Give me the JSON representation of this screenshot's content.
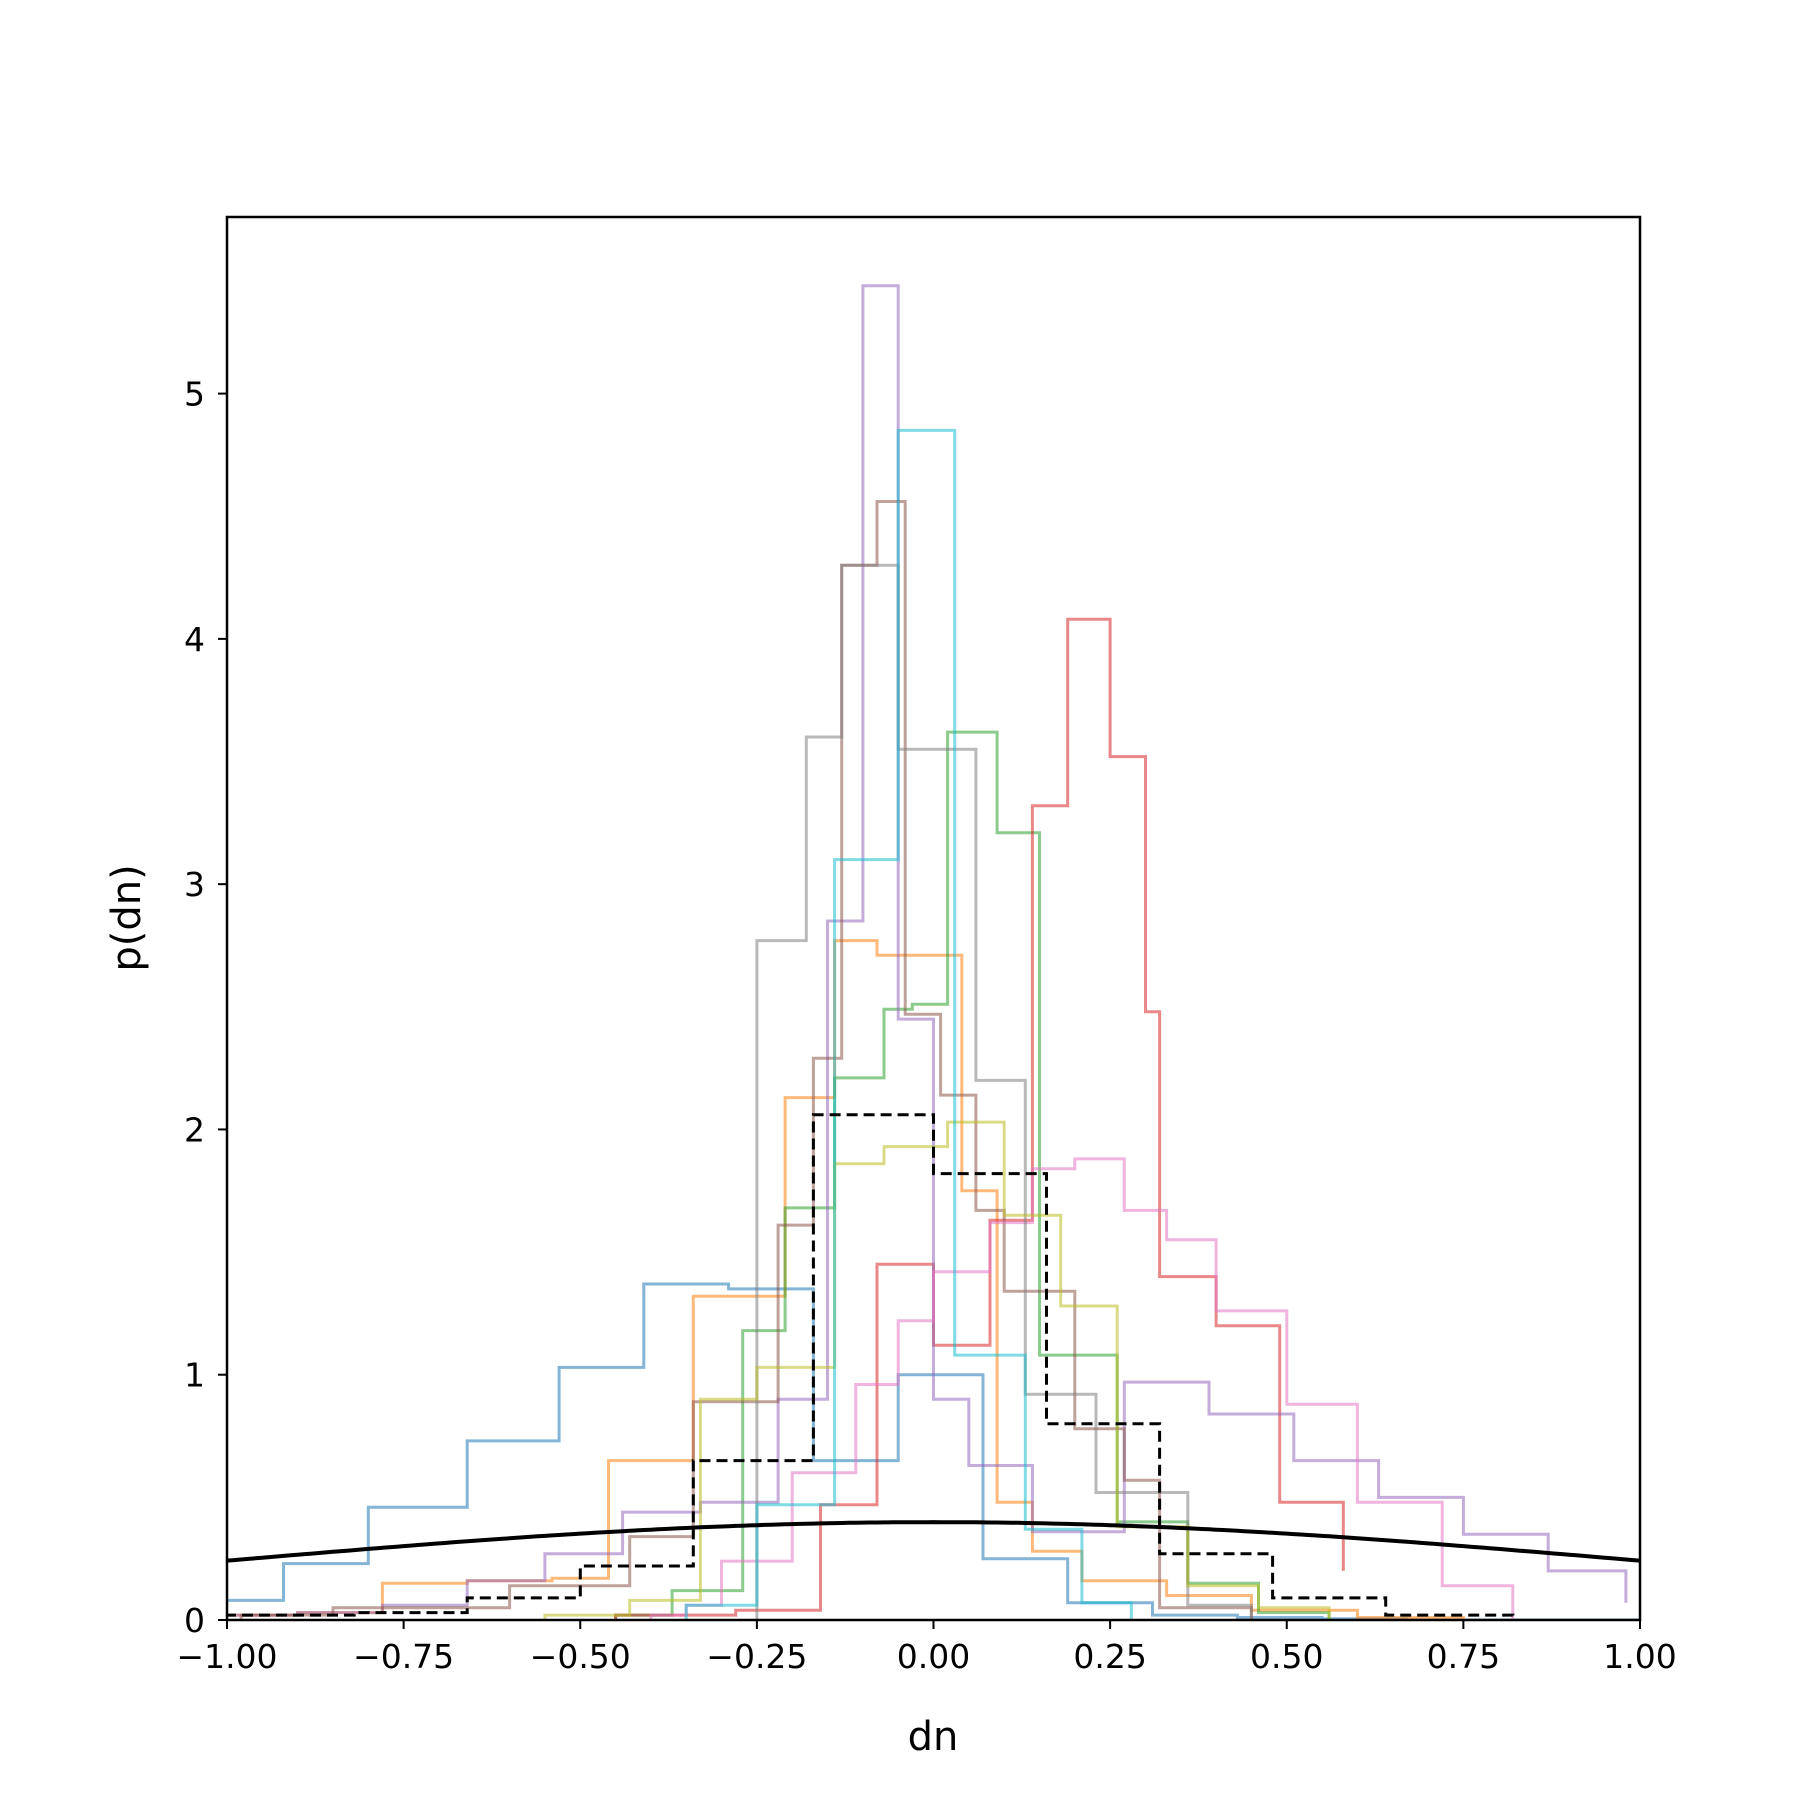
{
  "chart_data": {
    "type": "step-histogram",
    "xlabel": "dn",
    "ylabel": "p(dn)",
    "xlim": [
      -1.0,
      1.0
    ],
    "ylim": [
      0,
      5.72
    ],
    "xticks": [
      "−1.00",
      "−0.75",
      "−0.50",
      "−0.25",
      "0.00",
      "0.25",
      "0.50",
      "0.75",
      "1.00"
    ],
    "yticks": [
      "0",
      "1",
      "2",
      "3",
      "4",
      "5"
    ],
    "xtick_values": [
      -1.0,
      -0.75,
      -0.5,
      -0.25,
      0.0,
      0.25,
      0.5,
      0.75,
      1.0
    ],
    "ytick_values": [
      0,
      1,
      2,
      3,
      4,
      5
    ],
    "grid": false,
    "legend": "none",
    "series": [
      {
        "color": "#1f77b4",
        "alpha": 0.55,
        "edges": [
          -1.02,
          -0.92,
          -0.8,
          -0.66,
          -0.53,
          -0.41,
          -0.29,
          -0.17,
          -0.05,
          0.07,
          0.19,
          0.31,
          0.43,
          0.55,
          0.67,
          0.79,
          0.91,
          1.02
        ],
        "values": [
          0.08,
          0.23,
          0.46,
          0.73,
          1.03,
          1.37,
          1.35,
          0.65,
          1.0,
          0.25,
          0.07,
          0.02,
          0.01,
          0.005,
          0.0,
          0.0,
          0.0
        ]
      },
      {
        "color": "#ff7f0e",
        "alpha": 0.55,
        "edges": [
          -1.02,
          -0.9,
          -0.78,
          -0.66,
          -0.54,
          -0.46,
          -0.34,
          -0.21,
          -0.14,
          -0.08,
          0.04,
          0.09,
          0.14,
          0.21,
          0.33,
          0.45,
          0.6,
          0.75
        ],
        "values": [
          0.02,
          0.03,
          0.15,
          0.16,
          0.17,
          0.65,
          1.32,
          2.13,
          2.77,
          2.71,
          1.75,
          0.48,
          0.28,
          0.16,
          0.1,
          0.04,
          0.01
        ]
      },
      {
        "color": "#2ca02c",
        "alpha": 0.55,
        "edges": [
          -0.45,
          -0.37,
          -0.27,
          -0.21,
          -0.14,
          -0.07,
          -0.03,
          0.02,
          0.09,
          0.15,
          0.26,
          0.36,
          0.46,
          0.56
        ],
        "values": [
          0.02,
          0.12,
          1.18,
          1.68,
          2.21,
          2.49,
          2.51,
          3.62,
          3.21,
          1.08,
          0.4,
          0.15,
          0.03
        ]
      },
      {
        "color": "#d62728",
        "alpha": 0.55,
        "edges": [
          -0.45,
          -0.28,
          -0.16,
          -0.08,
          0.0,
          0.08,
          0.14,
          0.19,
          0.25,
          0.3,
          0.32,
          0.4,
          0.49,
          0.58
        ],
        "values": [
          0.02,
          0.04,
          0.47,
          1.45,
          1.12,
          1.63,
          3.32,
          4.08,
          3.52,
          2.48,
          1.4,
          1.2,
          0.48,
          0.2
        ]
      },
      {
        "color": "#9467bd",
        "alpha": 0.55,
        "edges": [
          -1.02,
          -0.9,
          -0.78,
          -0.66,
          -0.55,
          -0.44,
          -0.33,
          -0.22,
          -0.15,
          -0.1,
          -0.05,
          0.0,
          0.05,
          0.14,
          0.27,
          0.39,
          0.51,
          0.63,
          0.75,
          0.87,
          0.98
        ],
        "values": [
          0.02,
          0.03,
          0.06,
          0.16,
          0.27,
          0.44,
          0.48,
          0.9,
          2.85,
          5.44,
          2.45,
          0.9,
          0.63,
          0.36,
          0.97,
          0.84,
          0.65,
          0.5,
          0.35,
          0.2,
          0.07
        ]
      },
      {
        "color": "#8c564b",
        "alpha": 0.55,
        "edges": [
          -0.98,
          -0.85,
          -0.6,
          -0.43,
          -0.34,
          -0.22,
          -0.17,
          -0.13,
          -0.08,
          -0.04,
          0.01,
          0.06,
          0.1,
          0.2,
          0.27,
          0.32,
          0.45
        ],
        "values": [
          0.02,
          0.05,
          0.14,
          0.34,
          0.89,
          1.61,
          2.29,
          4.3,
          4.56,
          2.47,
          2.14,
          1.67,
          1.34,
          0.78,
          0.57,
          0.05
        ]
      },
      {
        "color": "#e377c2",
        "alpha": 0.55,
        "edges": [
          -0.4,
          -0.35,
          -0.3,
          -0.2,
          -0.11,
          -0.05,
          0.0,
          0.08,
          0.14,
          0.2,
          0.27,
          0.33,
          0.4,
          0.5,
          0.6,
          0.72,
          0.82
        ],
        "values": [
          0.02,
          0.06,
          0.24,
          0.6,
          0.96,
          1.22,
          1.42,
          1.62,
          1.84,
          1.88,
          1.67,
          1.55,
          1.26,
          0.88,
          0.48,
          0.14
        ]
      },
      {
        "color": "#7f7f7f",
        "alpha": 0.55,
        "edges": [
          -0.25,
          -0.18,
          -0.13,
          -0.05,
          0.06,
          0.13,
          0.23,
          0.36,
          0.45
        ],
        "values": [
          2.77,
          3.6,
          4.3,
          3.55,
          2.2,
          0.92,
          0.52,
          0.06
        ]
      },
      {
        "color": "#bcbd22",
        "alpha": 0.55,
        "edges": [
          -0.55,
          -0.43,
          -0.33,
          -0.25,
          -0.14,
          -0.07,
          0.02,
          0.1,
          0.18,
          0.26,
          0.36,
          0.46,
          0.56
        ],
        "values": [
          0.02,
          0.08,
          0.9,
          1.03,
          1.86,
          1.93,
          2.03,
          1.65,
          1.28,
          0.38,
          0.14,
          0.05
        ]
      },
      {
        "color": "#17becf",
        "alpha": 0.55,
        "edges": [
          -0.35,
          -0.25,
          -0.14,
          -0.05,
          0.03,
          0.13,
          0.21,
          0.28
        ],
        "values": [
          0.06,
          0.47,
          3.1,
          4.85,
          1.08,
          0.37,
          0.07
        ]
      }
    ],
    "reference_histogram": {
      "color": "#000000",
      "style": "dashed",
      "edges": [
        -1.02,
        -0.82,
        -0.66,
        -0.5,
        -0.34,
        -0.17,
        -0.0,
        0.16,
        0.32,
        0.48,
        0.64,
        0.82
      ],
      "values": [
        0.02,
        0.03,
        0.09,
        0.22,
        0.65,
        2.06,
        1.82,
        0.8,
        0.27,
        0.09,
        0.02
      ]
    },
    "reference_curve": {
      "color": "#000000",
      "style": "solid",
      "kind": "normal-pdf",
      "mean": 0.0,
      "sigma": 1.0
    }
  }
}
